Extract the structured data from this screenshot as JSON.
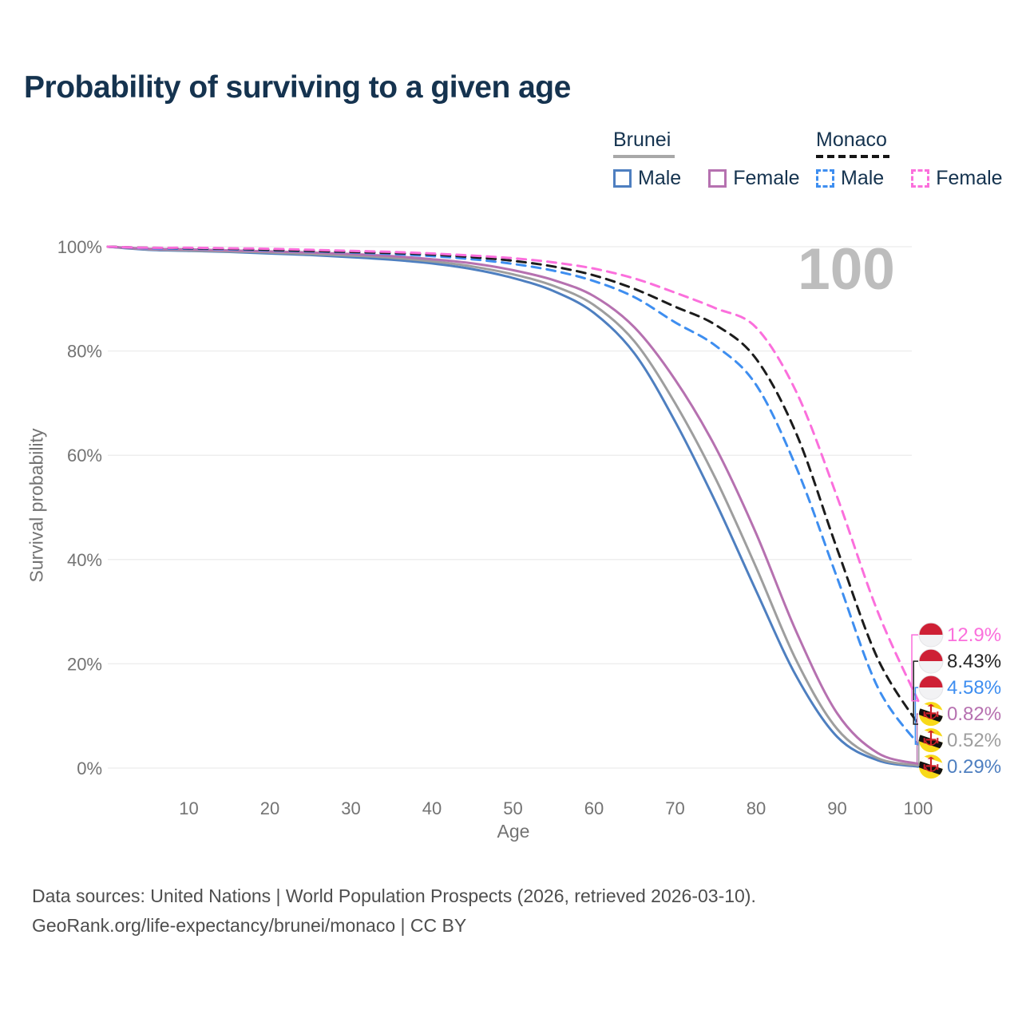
{
  "title": "Probability of surviving to a given age",
  "watermark_age": "100",
  "legend": {
    "groups": [
      {
        "country": "Brunei",
        "underline_style": "solid",
        "underline_color": "#A8A8A8",
        "items": [
          {
            "label": "Male",
            "color": "#4E7FC0",
            "swatch_style": "solid"
          },
          {
            "label": "Female",
            "color": "#B671B0",
            "swatch_style": "solid"
          }
        ]
      },
      {
        "country": "Monaco",
        "underline_style": "dashed",
        "underline_color": "#151515",
        "items": [
          {
            "label": "Male",
            "color": "#3E8EF0",
            "swatch_style": "dashed"
          },
          {
            "label": "Female",
            "color": "#FB6FDC",
            "swatch_style": "dashed"
          }
        ]
      }
    ]
  },
  "chart_data": {
    "type": "line",
    "title": "Probability of surviving to a given age",
    "xlabel": "Age",
    "ylabel": "Survival probability",
    "xlim": [
      0,
      100
    ],
    "ylim": [
      0,
      100
    ],
    "grid": "horizontal",
    "legend_position": "top-right",
    "x_ticks": [
      {
        "value": 10,
        "label": "10"
      },
      {
        "value": 20,
        "label": "20"
      },
      {
        "value": 30,
        "label": "30"
      },
      {
        "value": 40,
        "label": "40"
      },
      {
        "value": 50,
        "label": "50"
      },
      {
        "value": 60,
        "label": "60"
      },
      {
        "value": 70,
        "label": "70"
      },
      {
        "value": 80,
        "label": "80"
      },
      {
        "value": 90,
        "label": "90"
      },
      {
        "value": 100,
        "label": "100"
      }
    ],
    "y_ticks": [
      {
        "value": 0,
        "label": "0%"
      },
      {
        "value": 20,
        "label": "20%"
      },
      {
        "value": 40,
        "label": "40%"
      },
      {
        "value": 60,
        "label": "60%"
      },
      {
        "value": 80,
        "label": "80%"
      },
      {
        "value": 100,
        "label": "100%"
      }
    ],
    "series": [
      {
        "name": "Brunei Male",
        "country": "Brunei",
        "sex": "male",
        "line_style": "solid",
        "color": "#4E7FC0",
        "flag": "brunei",
        "end_label": "0.29%",
        "end_value": 0.29,
        "points": [
          [
            0,
            100
          ],
          [
            5,
            99.4
          ],
          [
            10,
            99.2
          ],
          [
            15,
            99.0
          ],
          [
            20,
            98.7
          ],
          [
            25,
            98.4
          ],
          [
            30,
            98.0
          ],
          [
            35,
            97.5
          ],
          [
            40,
            96.8
          ],
          [
            45,
            95.7
          ],
          [
            50,
            94.0
          ],
          [
            55,
            91.5
          ],
          [
            60,
            87.3
          ],
          [
            65,
            79.5
          ],
          [
            70,
            66.5
          ],
          [
            75,
            51.0
          ],
          [
            80,
            34.0
          ],
          [
            85,
            17.5
          ],
          [
            90,
            6.0
          ],
          [
            95,
            1.5
          ],
          [
            100,
            0.29
          ]
        ]
      },
      {
        "name": "Brunei Total",
        "country": "Brunei",
        "sex": "all",
        "line_style": "solid",
        "color": "#9E9E9E",
        "flag": "brunei",
        "end_label": "0.52%",
        "end_value": 0.52,
        "points": [
          [
            0,
            100
          ],
          [
            5,
            99.5
          ],
          [
            10,
            99.3
          ],
          [
            15,
            99.1
          ],
          [
            20,
            98.9
          ],
          [
            25,
            98.6
          ],
          [
            30,
            98.3
          ],
          [
            35,
            97.9
          ],
          [
            40,
            97.2
          ],
          [
            45,
            96.2
          ],
          [
            50,
            94.7
          ],
          [
            55,
            92.5
          ],
          [
            60,
            88.8
          ],
          [
            65,
            81.8
          ],
          [
            70,
            70.0
          ],
          [
            75,
            55.5
          ],
          [
            80,
            38.5
          ],
          [
            85,
            20.5
          ],
          [
            90,
            7.5
          ],
          [
            95,
            1.9
          ],
          [
            100,
            0.52
          ]
        ]
      },
      {
        "name": "Brunei Female",
        "country": "Brunei",
        "sex": "female",
        "line_style": "solid",
        "color": "#B671B0",
        "flag": "brunei",
        "end_label": "0.82%",
        "end_value": 0.82,
        "points": [
          [
            0,
            100
          ],
          [
            5,
            99.6
          ],
          [
            10,
            99.5
          ],
          [
            15,
            99.3
          ],
          [
            20,
            99.1
          ],
          [
            25,
            98.9
          ],
          [
            30,
            98.6
          ],
          [
            35,
            98.2
          ],
          [
            40,
            97.6
          ],
          [
            45,
            96.8
          ],
          [
            50,
            95.5
          ],
          [
            55,
            93.6
          ],
          [
            60,
            90.5
          ],
          [
            65,
            84.5
          ],
          [
            70,
            74.5
          ],
          [
            75,
            61.5
          ],
          [
            80,
            45.0
          ],
          [
            85,
            26.0
          ],
          [
            90,
            10.5
          ],
          [
            95,
            2.9
          ],
          [
            100,
            0.82
          ]
        ]
      },
      {
        "name": "Monaco Male",
        "country": "Monaco",
        "sex": "male",
        "line_style": "dashed",
        "color": "#3E8EF0",
        "flag": "monaco",
        "end_label": "4.58%",
        "end_value": 4.58,
        "points": [
          [
            0,
            100
          ],
          [
            5,
            99.7
          ],
          [
            10,
            99.6
          ],
          [
            15,
            99.5
          ],
          [
            20,
            99.3
          ],
          [
            25,
            99.1
          ],
          [
            30,
            98.9
          ],
          [
            35,
            98.6
          ],
          [
            40,
            98.2
          ],
          [
            45,
            97.6
          ],
          [
            50,
            96.7
          ],
          [
            55,
            95.4
          ],
          [
            60,
            93.4
          ],
          [
            65,
            90.3
          ],
          [
            70,
            85.5
          ],
          [
            75,
            81.0
          ],
          [
            80,
            73.5
          ],
          [
            85,
            57.5
          ],
          [
            90,
            36.5
          ],
          [
            95,
            15.5
          ],
          [
            100,
            4.58
          ]
        ]
      },
      {
        "name": "Monaco Total",
        "country": "Monaco",
        "sex": "all",
        "line_style": "dashed",
        "color": "#1C1C1C",
        "flag": "monaco",
        "end_label": "8.43%",
        "end_value": 8.43,
        "points": [
          [
            0,
            100
          ],
          [
            5,
            99.8
          ],
          [
            10,
            99.7
          ],
          [
            15,
            99.6
          ],
          [
            20,
            99.4
          ],
          [
            25,
            99.2
          ],
          [
            30,
            99.0
          ],
          [
            35,
            98.8
          ],
          [
            40,
            98.5
          ],
          [
            45,
            98.0
          ],
          [
            50,
            97.3
          ],
          [
            55,
            96.2
          ],
          [
            60,
            94.5
          ],
          [
            65,
            91.9
          ],
          [
            70,
            88.5
          ],
          [
            75,
            85.0
          ],
          [
            80,
            78.5
          ],
          [
            85,
            64.0
          ],
          [
            90,
            42.0
          ],
          [
            95,
            21.0
          ],
          [
            100,
            8.43
          ]
        ]
      },
      {
        "name": "Monaco Female",
        "country": "Monaco",
        "sex": "female",
        "line_style": "dashed",
        "color": "#FB6FDC",
        "flag": "monaco",
        "end_label": "12.9%",
        "end_value": 12.9,
        "points": [
          [
            0,
            100
          ],
          [
            5,
            99.8
          ],
          [
            10,
            99.8
          ],
          [
            15,
            99.7
          ],
          [
            20,
            99.6
          ],
          [
            25,
            99.4
          ],
          [
            30,
            99.2
          ],
          [
            35,
            99.0
          ],
          [
            40,
            98.7
          ],
          [
            45,
            98.3
          ],
          [
            50,
            97.8
          ],
          [
            55,
            97.0
          ],
          [
            60,
            95.8
          ],
          [
            65,
            93.9
          ],
          [
            70,
            91.2
          ],
          [
            75,
            88.2
          ],
          [
            80,
            84.5
          ],
          [
            85,
            72.0
          ],
          [
            90,
            52.0
          ],
          [
            95,
            30.0
          ],
          [
            100,
            12.9
          ]
        ]
      }
    ]
  },
  "footer": {
    "line1": "Data sources: United Nations | World Population Prospects (2026, retrieved 2026-03-10).",
    "line2": "GeoRank.org/life-expectancy/brunei/monaco | CC BY"
  }
}
